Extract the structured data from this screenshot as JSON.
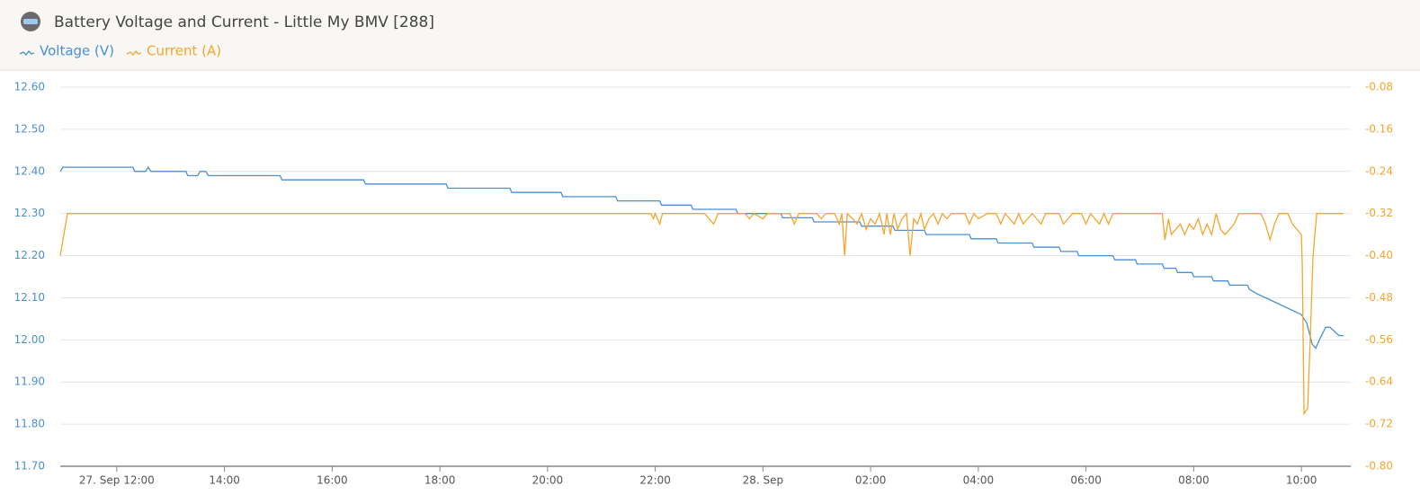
{
  "chart_data": {
    "type": "line",
    "title": "Battery Voltage and Current - Little My BMV [288]",
    "xlim": [
      "09-27 10:57",
      "09-28 10:55"
    ],
    "xticks": [
      {
        "value": "09-27 12:00",
        "label": "27. Sep 12:00"
      },
      {
        "value": "09-27 14:00",
        "label": "14:00"
      },
      {
        "value": "09-27 16:00",
        "label": "16:00"
      },
      {
        "value": "09-27 18:00",
        "label": "18:00"
      },
      {
        "value": "09-27 20:00",
        "label": "20:00"
      },
      {
        "value": "09-27 22:00",
        "label": "22:00"
      },
      {
        "value": "09-28 00:00",
        "label": "28. Sep"
      },
      {
        "value": "09-28 02:00",
        "label": "02:00"
      },
      {
        "value": "09-28 04:00",
        "label": "04:00"
      },
      {
        "value": "09-28 06:00",
        "label": "06:00"
      },
      {
        "value": "09-28 08:00",
        "label": "08:00"
      },
      {
        "value": "09-28 10:00",
        "label": "10:00"
      }
    ],
    "ylim": [
      11.7,
      12.6
    ],
    "yticks": [
      {
        "value": 11.7,
        "label": "11.70"
      },
      {
        "value": 11.8,
        "label": "11.80"
      },
      {
        "value": 11.9,
        "label": "11.90"
      },
      {
        "value": 12.0,
        "label": "12.00"
      },
      {
        "value": 12.1,
        "label": "12.10"
      },
      {
        "value": 12.2,
        "label": "12.20"
      },
      {
        "value": 12.3,
        "label": "12.30"
      },
      {
        "value": 12.4,
        "label": "12.40"
      },
      {
        "value": 12.5,
        "label": "12.50"
      },
      {
        "value": 12.6,
        "label": "12.60"
      }
    ],
    "y2lim": [
      -0.8,
      -0.08
    ],
    "y2ticks": [
      {
        "value": -0.8,
        "label": "-0.80"
      },
      {
        "value": -0.72,
        "label": "-0.72"
      },
      {
        "value": -0.64,
        "label": "-0.64"
      },
      {
        "value": -0.56,
        "label": "-0.56"
      },
      {
        "value": -0.48,
        "label": "-0.48"
      },
      {
        "value": -0.4,
        "label": "-0.40"
      },
      {
        "value": -0.32,
        "label": "-0.32"
      },
      {
        "value": -0.24,
        "label": "-0.24"
      },
      {
        "value": -0.16,
        "label": "-0.16"
      },
      {
        "value": -0.08,
        "label": "-0.08"
      }
    ],
    "grid": true,
    "series": [
      {
        "name": "Voltage (V)",
        "color": "#4a8fd4",
        "x": [
          "09-27 10:57",
          "09-27 11:00",
          "09-27 12:18",
          "09-27 12:20",
          "09-27 12:32",
          "09-27 12:35",
          "09-27 12:38",
          "09-27 13:17",
          "09-27 13:19",
          "09-27 13:30",
          "09-27 13:33",
          "09-27 13:39",
          "09-27 13:42",
          "09-27 15:02",
          "09-27 15:04",
          "09-27 16:35",
          "09-27 16:37",
          "09-27 18:07",
          "09-27 18:09",
          "09-27 19:18",
          "09-27 19:20",
          "09-27 20:15",
          "09-27 20:17",
          "09-27 21:16",
          "09-27 21:18",
          "09-27 22:05",
          "09-27 22:07",
          "09-27 22:40",
          "09-27 22:42",
          "09-27 23:30",
          "09-27 23:32",
          "09-28 00:20",
          "09-28 00:22",
          "09-28 00:55",
          "09-28 00:57",
          "09-28 01:48",
          "09-28 01:50",
          "09-28 02:25",
          "09-28 02:27",
          "09-28 03:00",
          "09-28 03:02",
          "09-28 03:50",
          "09-28 03:52",
          "09-28 04:20",
          "09-28 04:22",
          "09-28 05:00",
          "09-28 05:02",
          "09-28 05:30",
          "09-28 05:32",
          "09-28 05:50",
          "09-28 05:52",
          "09-28 06:30",
          "09-28 06:32",
          "09-28 06:55",
          "09-28 06:57",
          "09-28 07:25",
          "09-28 07:27",
          "09-28 07:40",
          "09-28 07:42",
          "09-28 07:58",
          "09-28 08:00",
          "09-28 08:20",
          "09-28 08:22",
          "09-28 08:38",
          "09-28 08:40",
          "09-28 09:00",
          "09-28 09:02",
          "09-28 09:10",
          "09-28 09:20",
          "09-28 09:30",
          "09-28 09:40",
          "09-28 09:50",
          "09-28 10:00",
          "09-28 10:06",
          "09-28 10:12",
          "09-28 10:16",
          "09-28 10:20",
          "09-28 10:27",
          "09-28 10:32",
          "09-28 10:37",
          "09-28 10:42",
          "09-28 10:47"
        ],
        "values": [
          12.4,
          12.41,
          12.41,
          12.4,
          12.4,
          12.41,
          12.4,
          12.4,
          12.39,
          12.39,
          12.4,
          12.4,
          12.39,
          12.39,
          12.38,
          12.38,
          12.37,
          12.37,
          12.36,
          12.36,
          12.35,
          12.35,
          12.34,
          12.34,
          12.33,
          12.33,
          12.32,
          12.32,
          12.31,
          12.31,
          12.3,
          12.3,
          12.29,
          12.29,
          12.28,
          12.28,
          12.27,
          12.27,
          12.26,
          12.26,
          12.25,
          12.25,
          12.24,
          12.24,
          12.23,
          12.23,
          12.22,
          12.22,
          12.21,
          12.21,
          12.2,
          12.2,
          12.19,
          12.19,
          12.18,
          12.18,
          12.17,
          12.17,
          12.16,
          12.16,
          12.15,
          12.15,
          12.14,
          12.14,
          12.13,
          12.13,
          12.12,
          12.11,
          12.1,
          12.09,
          12.08,
          12.07,
          12.06,
          12.04,
          11.99,
          11.98,
          12.0,
          12.03,
          12.03,
          12.02,
          12.01,
          12.01
        ]
      },
      {
        "name": "Current (A)",
        "color": "#f5a52e",
        "axis": "y2",
        "x": [
          "09-27 10:57",
          "09-27 11:05",
          "09-27 21:55",
          "09-27 21:58",
          "09-27 22:00",
          "09-27 22:05",
          "09-27 22:08",
          "09-27 22:55",
          "09-27 23:00",
          "09-27 23:05",
          "09-27 23:10",
          "09-27 23:40",
          "09-27 23:45",
          "09-27 23:50",
          "09-28 00:00",
          "09-28 00:05",
          "09-28 00:30",
          "09-28 00:35",
          "09-28 00:40",
          "09-28 01:00",
          "09-28 01:05",
          "09-28 01:10",
          "09-28 01:20",
          "09-28 01:25",
          "09-28 01:28",
          "09-28 01:31",
          "09-28 01:34",
          "09-28 01:40",
          "09-28 01:45",
          "09-28 01:50",
          "09-28 01:55",
          "09-28 02:00",
          "09-28 02:05",
          "09-28 02:10",
          "09-28 02:15",
          "09-28 02:18",
          "09-28 02:22",
          "09-28 02:26",
          "09-28 02:30",
          "09-28 02:35",
          "09-28 02:40",
          "09-28 02:44",
          "09-28 02:48",
          "09-28 02:52",
          "09-28 02:56",
          "09-28 03:00",
          "09-28 03:05",
          "09-28 03:10",
          "09-28 03:15",
          "09-28 03:20",
          "09-28 03:25",
          "09-28 03:30",
          "09-28 03:45",
          "09-28 03:50",
          "09-28 03:55",
          "09-28 04:00",
          "09-28 04:10",
          "09-28 04:20",
          "09-28 04:25",
          "09-28 04:30",
          "09-28 04:40",
          "09-28 04:45",
          "09-28 04:50",
          "09-28 04:55",
          "09-28 05:00",
          "09-28 05:10",
          "09-28 05:15",
          "09-28 05:30",
          "09-28 05:35",
          "09-28 05:40",
          "09-28 05:45",
          "09-28 05:55",
          "09-28 06:00",
          "09-28 06:05",
          "09-28 06:15",
          "09-28 06:20",
          "09-28 06:25",
          "09-28 06:30",
          "09-28 07:25",
          "09-28 07:28",
          "09-28 07:32",
          "09-28 07:35",
          "09-28 07:40",
          "09-28 07:45",
          "09-28 07:50",
          "09-28 07:55",
          "09-28 08:00",
          "09-28 08:05",
          "09-28 08:10",
          "09-28 08:15",
          "09-28 08:20",
          "09-28 08:25",
          "09-28 08:30",
          "09-28 08:35",
          "09-28 08:40",
          "09-28 08:45",
          "09-28 08:50",
          "09-28 09:15",
          "09-28 09:20",
          "09-28 09:25",
          "09-28 09:30",
          "09-28 09:35",
          "09-28 09:45",
          "09-28 09:50",
          "09-28 10:00",
          "09-28 10:01",
          "09-28 10:03",
          "09-28 10:07",
          "09-28 10:10",
          "09-28 10:13",
          "09-28 10:17",
          "09-28 10:47"
        ],
        "values": [
          -0.4,
          -0.32,
          -0.32,
          -0.33,
          -0.32,
          -0.34,
          -0.32,
          -0.32,
          -0.33,
          -0.34,
          -0.32,
          -0.32,
          -0.33,
          -0.32,
          -0.33,
          -0.32,
          -0.32,
          -0.34,
          -0.32,
          -0.32,
          -0.33,
          -0.32,
          -0.32,
          -0.34,
          -0.32,
          -0.4,
          -0.32,
          -0.33,
          -0.34,
          -0.32,
          -0.35,
          -0.33,
          -0.34,
          -0.32,
          -0.36,
          -0.32,
          -0.36,
          -0.32,
          -0.35,
          -0.33,
          -0.32,
          -0.4,
          -0.33,
          -0.34,
          -0.32,
          -0.35,
          -0.33,
          -0.32,
          -0.34,
          -0.32,
          -0.33,
          -0.32,
          -0.32,
          -0.34,
          -0.32,
          -0.33,
          -0.32,
          -0.32,
          -0.34,
          -0.32,
          -0.34,
          -0.32,
          -0.34,
          -0.33,
          -0.32,
          -0.34,
          -0.32,
          -0.32,
          -0.34,
          -0.33,
          -0.32,
          -0.32,
          -0.34,
          -0.32,
          -0.34,
          -0.32,
          -0.34,
          -0.32,
          -0.32,
          -0.37,
          -0.33,
          -0.36,
          -0.35,
          -0.34,
          -0.36,
          -0.34,
          -0.35,
          -0.33,
          -0.36,
          -0.34,
          -0.36,
          -0.32,
          -0.35,
          -0.36,
          -0.35,
          -0.34,
          -0.32,
          -0.32,
          -0.34,
          -0.37,
          -0.34,
          -0.32,
          -0.32,
          -0.34,
          -0.36,
          -0.42,
          -0.7,
          -0.69,
          -0.55,
          -0.4,
          -0.32,
          -0.32
        ]
      }
    ]
  }
}
